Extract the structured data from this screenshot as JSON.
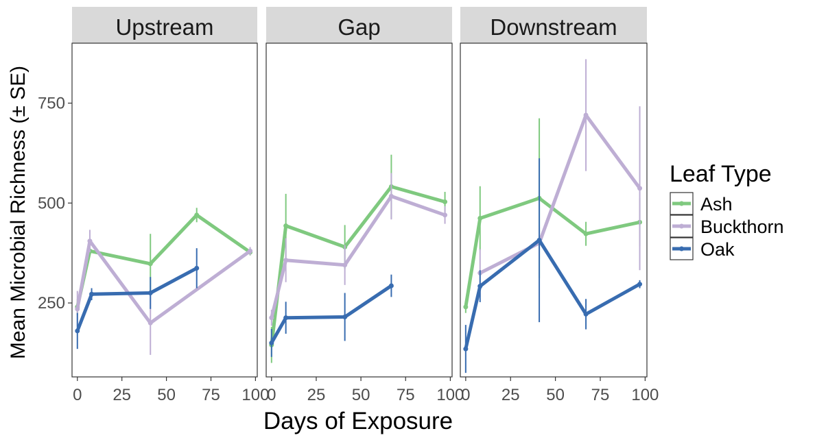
{
  "chart_data": {
    "type": "line",
    "xlabel": "Days of Exposure",
    "ylabel": "Mean Microbial Richness (± SE)",
    "xlim": [
      -3,
      101
    ],
    "ylim": [
      65,
      900
    ],
    "x_ticks": [
      0,
      25,
      50,
      75,
      100
    ],
    "y_ticks": [
      250,
      500,
      750
    ],
    "grid": false,
    "legend": {
      "title": "Leaf Type",
      "placement": "right",
      "entries": [
        "Ash",
        "Buckthorn",
        "Oak"
      ]
    },
    "colors": {
      "Ash": "#7fc97f",
      "Buckthorn": "#beaed4",
      "Oak": "#386cb0"
    },
    "panels": [
      {
        "name": "Upstream",
        "series": [
          {
            "name": "Ash",
            "x": [
              0,
              7,
              41,
              67,
              97
            ],
            "y": [
              240,
              380,
              348,
              470,
              377
            ],
            "se": [
              20,
              12,
              75,
              18,
              8
            ]
          },
          {
            "name": "Buckthorn",
            "x": [
              0,
              7,
              41,
              97
            ],
            "y": [
              235,
              405,
              200,
              380
            ],
            "se": [
              45,
              28,
              80,
              10
            ]
          },
          {
            "name": "Oak",
            "x": [
              0,
              8,
              41,
              67
            ],
            "y": [
              180,
              272,
              275,
              337
            ],
            "se": [
              45,
              15,
              40,
              50
            ]
          }
        ]
      },
      {
        "name": "Gap",
        "series": [
          {
            "name": "Ash",
            "x": [
              0,
              8,
              41,
              67,
              97
            ],
            "y": [
              145,
              443,
              390,
              541,
              503
            ],
            "se": [
              45,
              80,
              55,
              80,
              25
            ]
          },
          {
            "name": "Buckthorn",
            "x": [
              0,
              8,
              41,
              67,
              97
            ],
            "y": [
              213,
              357,
              345,
              517,
              470
            ],
            "se": [
              20,
              55,
              50,
              58,
              22
            ]
          },
          {
            "name": "Oak",
            "x": [
              0,
              8,
              41,
              67
            ],
            "y": [
              150,
              213,
              215,
              293
            ],
            "se": [
              35,
              40,
              60,
              28
            ]
          }
        ]
      },
      {
        "name": "Downstream",
        "series": [
          {
            "name": "Ash",
            "x": [
              0,
              8,
              41,
              67,
              97
            ],
            "y": [
              240,
              462,
              512,
              423,
              452
            ],
            "se": [
              15,
              80,
              200,
              30,
              60
            ]
          },
          {
            "name": "Buckthorn",
            "x": [
              8,
              41,
              67,
              97
            ],
            "y": [
              325,
              400,
              720,
              537
            ],
            "se": [
              60,
              40,
              140,
              205
            ]
          },
          {
            "name": "Oak",
            "x": [
              0,
              8,
              41,
              67,
              97
            ],
            "y": [
              135,
              292,
              407,
              222,
              297
            ],
            "se": [
              60,
              40,
              205,
              38,
              10
            ]
          }
        ]
      }
    ]
  }
}
